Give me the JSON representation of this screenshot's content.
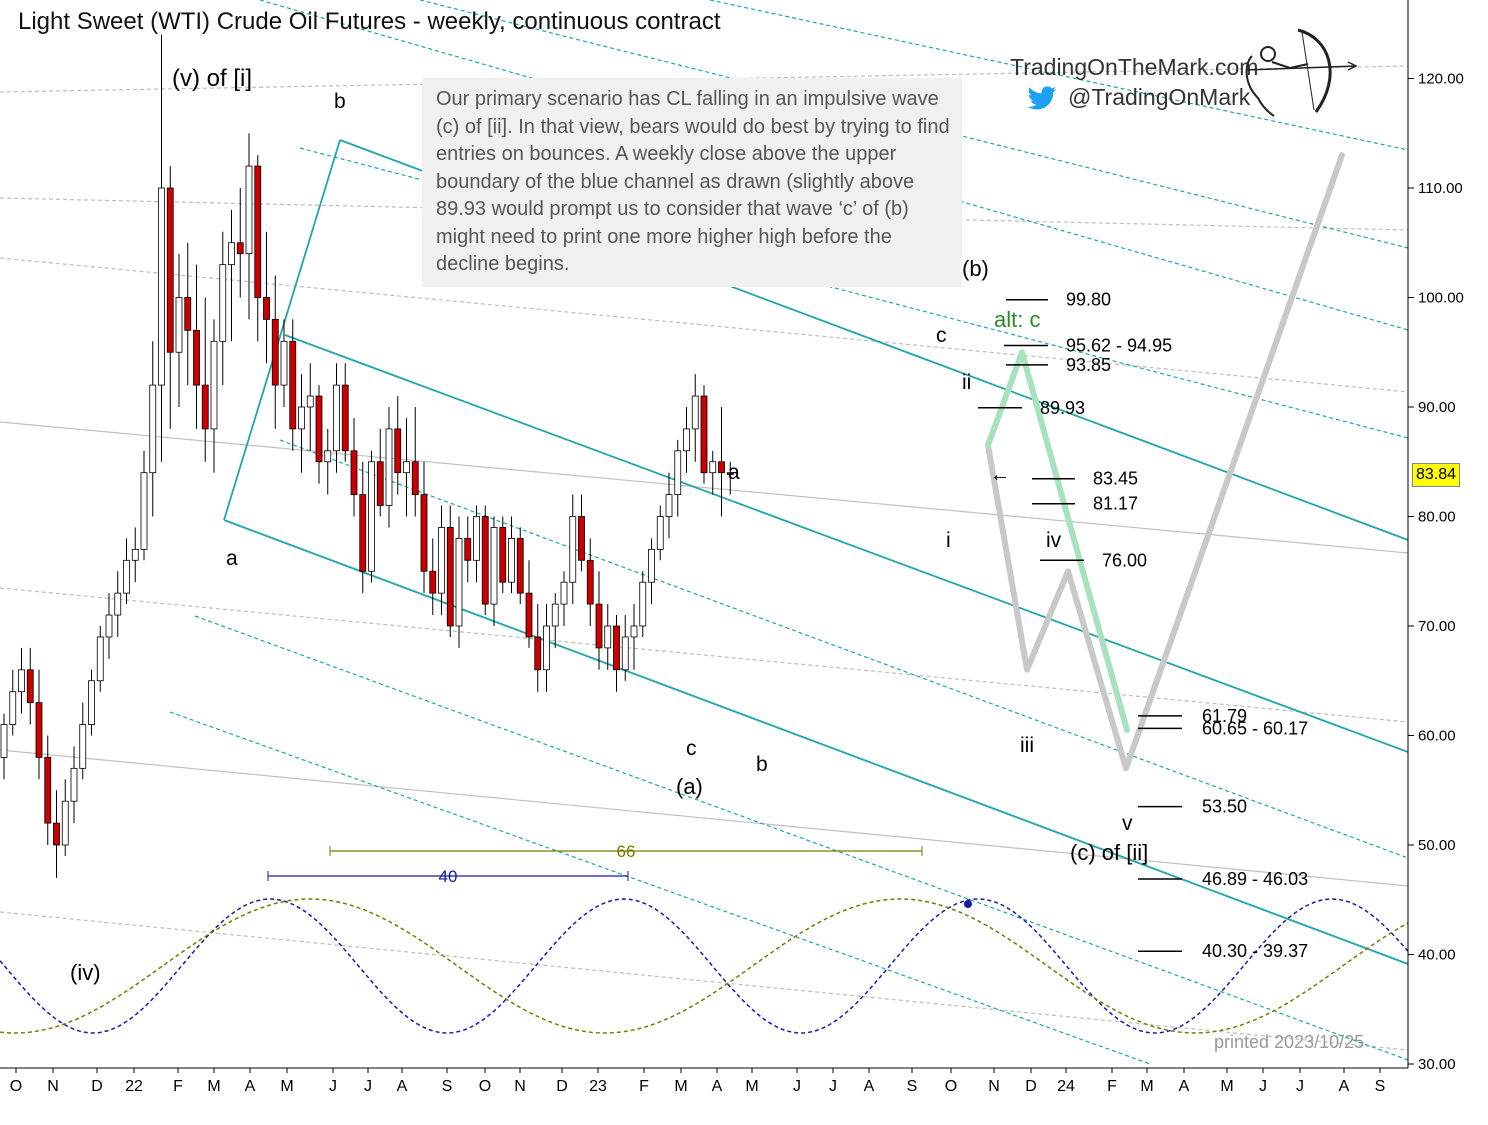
{
  "title": "Light Sweet (WTI) Crude Oil Futures - weekly, continuous contract",
  "note": "Our primary scenario has CL falling in an impulsive wave (c) of [ii]. In that view, bears would do best by trying to find entries on bounces. A weekly close above the upper boundary of the blue channel as drawn (slightly above 89.93 would prompt us to consider that wave ‘c’ of (b) might need to print one more higher high before the decline begins.",
  "brand": {
    "site": "TradingOnTheMark.com",
    "handle": "@TradingOnMark",
    "icon": "twitter-bird-icon",
    "logo": "archer-logo-icon"
  },
  "printed": "printed 2023/10/25",
  "current_price": "83.84",
  "colors": {
    "up": "#ffffff",
    "down": "#cc0000",
    "channel": "#1fa6a6",
    "grey_line": "#bdbdbd",
    "green_path": "#a7e2bf",
    "grey_path": "#c8c8c8",
    "cycle40": "#1a1aa8",
    "cycle66": "#7a7a00",
    "highlight": "#ffff00"
  },
  "chart_data": {
    "type": "candlestick",
    "title": "Light Sweet (WTI) Crude Oil Futures - weekly, continuous contract",
    "y_range": [
      30,
      125
    ],
    "y_ticks": [
      "120.00",
      "110.00",
      "100.00",
      "90.00",
      "80.00",
      "70.00",
      "60.00",
      "50.00",
      "40.00",
      "30.00"
    ],
    "x_ticks": [
      "O",
      "N",
      "D",
      "22",
      "F",
      "M",
      "A",
      "M",
      "J",
      "J",
      "A",
      "S",
      "O",
      "N",
      "D",
      "23",
      "F",
      "M",
      "A",
      "M",
      "J",
      "J",
      "A",
      "S",
      "O",
      "N",
      "D",
      "24",
      "F",
      "M",
      "A",
      "M",
      "J",
      "J",
      "A",
      "S"
    ],
    "price_levels": [
      {
        "label": "99.80",
        "value": 99.8
      },
      {
        "label": "95.62  - 94.95",
        "value": 95.62
      },
      {
        "label": "93.85",
        "value": 93.85
      },
      {
        "label": "89.93",
        "value": 89.93
      },
      {
        "label": "83.45",
        "value": 83.45
      },
      {
        "label": "81.17",
        "value": 81.17
      },
      {
        "label": "76.00",
        "value": 76.0
      },
      {
        "label": "61.79",
        "value": 61.79
      },
      {
        "label": "60.65  - 60.17",
        "value": 60.65
      },
      {
        "label": "53.50",
        "value": 53.5
      },
      {
        "label": "46.89  - 46.03",
        "value": 46.89
      },
      {
        "label": "40.30  - 39.37",
        "value": 40.3
      }
    ],
    "wave_labels": [
      "(v) of [i]",
      "b",
      "a",
      "(b)",
      "alt: c",
      "c",
      "ii",
      "i",
      "iv",
      "a",
      "c",
      "(a)",
      "b",
      "iii",
      "v",
      "(c) of [ii]",
      "(iv)"
    ],
    "cycles": [
      {
        "period": "40",
        "color": "#1a1aa8"
      },
      {
        "period": "66",
        "color": "#7a7a00"
      }
    ],
    "candles": [
      [
        58,
        62,
        56,
        61
      ],
      [
        61,
        66,
        60,
        64
      ],
      [
        64,
        68,
        62,
        66
      ],
      [
        66,
        68,
        61,
        63
      ],
      [
        63,
        66,
        56,
        58
      ],
      [
        58,
        60,
        50,
        52
      ],
      [
        52,
        55,
        47,
        50
      ],
      [
        50,
        56,
        49,
        54
      ],
      [
        54,
        59,
        52,
        57
      ],
      [
        57,
        63,
        56,
        61
      ],
      [
        61,
        66,
        60,
        65
      ],
      [
        65,
        70,
        64,
        69
      ],
      [
        69,
        73,
        67,
        71
      ],
      [
        71,
        75,
        69,
        73
      ],
      [
        73,
        78,
        72,
        76
      ],
      [
        76,
        79,
        74,
        77
      ],
      [
        77,
        86,
        76,
        84
      ],
      [
        84,
        96,
        80,
        92
      ],
      [
        92,
        124,
        85,
        110
      ],
      [
        110,
        112,
        88,
        95
      ],
      [
        95,
        104,
        90,
        100
      ],
      [
        100,
        105,
        92,
        97
      ],
      [
        97,
        103,
        88,
        92
      ],
      [
        92,
        100,
        85,
        88
      ],
      [
        88,
        98,
        84,
        96
      ],
      [
        96,
        106,
        92,
        103
      ],
      [
        103,
        108,
        96,
        105
      ],
      [
        105,
        110,
        100,
        104
      ],
      [
        104,
        115,
        98,
        112
      ],
      [
        112,
        113,
        96,
        100
      ],
      [
        100,
        106,
        94,
        98
      ],
      [
        98,
        102,
        88,
        92
      ],
      [
        92,
        98,
        90,
        96
      ],
      [
        96,
        98,
        86,
        88
      ],
      [
        88,
        93,
        84,
        90
      ],
      [
        90,
        94,
        86,
        91
      ],
      [
        91,
        92,
        83,
        85
      ],
      [
        85,
        88,
        82,
        86
      ],
      [
        86,
        94,
        84,
        92
      ],
      [
        92,
        94,
        85,
        86
      ],
      [
        86,
        89,
        80,
        82
      ],
      [
        82,
        85,
        73,
        75
      ],
      [
        75,
        86,
        74,
        85
      ],
      [
        85,
        88,
        80,
        81
      ],
      [
        81,
        90,
        79,
        88
      ],
      [
        88,
        91,
        82,
        84
      ],
      [
        84,
        89,
        80,
        85
      ],
      [
        85,
        90,
        80,
        82
      ],
      [
        82,
        85,
        73,
        75
      ],
      [
        75,
        78,
        71,
        73
      ],
      [
        73,
        81,
        71,
        79
      ],
      [
        79,
        81,
        69,
        70
      ],
      [
        70,
        80,
        68,
        78
      ],
      [
        78,
        80,
        74,
        76
      ],
      [
        76,
        81,
        74,
        80
      ],
      [
        80,
        81,
        71,
        72
      ],
      [
        72,
        80,
        70,
        79
      ],
      [
        79,
        80,
        73,
        74
      ],
      [
        74,
        80,
        73,
        78
      ],
      [
        78,
        79,
        72,
        73
      ],
      [
        73,
        76,
        68,
        69
      ],
      [
        69,
        72,
        64,
        66
      ],
      [
        66,
        72,
        64,
        70
      ],
      [
        70,
        73,
        68,
        72
      ],
      [
        72,
        75,
        70,
        74
      ],
      [
        74,
        82,
        72,
        80
      ],
      [
        80,
        82,
        75,
        76
      ],
      [
        76,
        78,
        70,
        72
      ],
      [
        72,
        75,
        66,
        68
      ],
      [
        68,
        72,
        66,
        70
      ],
      [
        70,
        71,
        64,
        66
      ],
      [
        66,
        71,
        65,
        69
      ],
      [
        69,
        72,
        66,
        70
      ],
      [
        70,
        75,
        69,
        74
      ],
      [
        74,
        78,
        72,
        77
      ],
      [
        77,
        81,
        76,
        80
      ],
      [
        80,
        84,
        78,
        82
      ],
      [
        82,
        87,
        80,
        86
      ],
      [
        86,
        90,
        84,
        88
      ],
      [
        88,
        93,
        85,
        91
      ],
      [
        91,
        92,
        83,
        84
      ],
      [
        84,
        86,
        82,
        85
      ],
      [
        85,
        90,
        80,
        84
      ],
      [
        84,
        85,
        82,
        83.84
      ]
    ],
    "projection_grey": [
      [
        86.5,
        83
      ],
      [
        66,
        65
      ],
      [
        75,
        74
      ],
      [
        57,
        56
      ],
      [
        113,
        112
      ]
    ],
    "projection_green": [
      [
        86.5,
        83
      ],
      [
        95,
        96
      ],
      [
        60.5,
        60
      ]
    ]
  }
}
